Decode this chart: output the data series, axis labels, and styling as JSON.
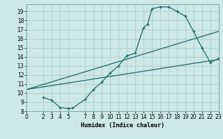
{
  "xlabel": "Humidex (Indice chaleur)",
  "bg_color": "#cde8e5",
  "grid_color": "#aacfcc",
  "line_color": "#1a6b6b",
  "xlim": [
    0,
    23
  ],
  "ylim": [
    8,
    19.8
  ],
  "xticks": [
    0,
    2,
    3,
    4,
    5,
    7,
    8,
    9,
    10,
    11,
    12,
    13,
    14,
    15,
    16,
    17,
    18,
    19,
    20,
    21,
    22,
    23
  ],
  "yticks": [
    8,
    9,
    10,
    11,
    12,
    13,
    14,
    15,
    16,
    17,
    18,
    19
  ],
  "line1_x": [
    2,
    3,
    4,
    5,
    5.5,
    7,
    8,
    9,
    10,
    11,
    12,
    13,
    14,
    14.5,
    15,
    16,
    17,
    18,
    19,
    20,
    21,
    22,
    23
  ],
  "line1_y": [
    9.5,
    9.2,
    8.4,
    8.3,
    8.35,
    9.3,
    10.4,
    11.2,
    12.2,
    13.0,
    14.1,
    14.4,
    17.2,
    17.6,
    19.3,
    19.5,
    19.5,
    19.0,
    18.5,
    16.8,
    15.0,
    13.4,
    13.8
  ],
  "line2_x": [
    0,
    23
  ],
  "line2_y": [
    10.4,
    13.7
  ],
  "line3_x": [
    0,
    23
  ],
  "line3_y": [
    10.4,
    16.8
  ]
}
